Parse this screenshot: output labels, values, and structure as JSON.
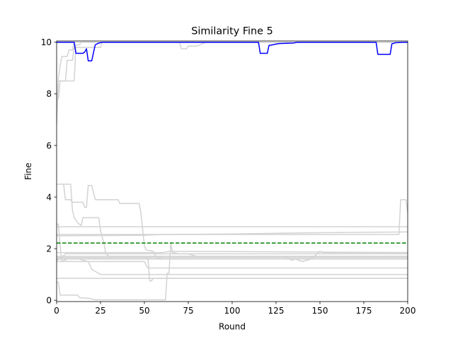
{
  "chart_data": {
    "type": "line",
    "title": "Similarity Fine 5",
    "xlabel": "Round",
    "ylabel": "Fine",
    "xlim": [
      0,
      200
    ],
    "ylim": [
      -0.05,
      10.05
    ],
    "xticks": [
      0,
      25,
      50,
      75,
      100,
      125,
      150,
      175,
      200
    ],
    "yticks": [
      0,
      2,
      4,
      6,
      8,
      10
    ],
    "grid": false,
    "legend": "none",
    "colors": {
      "highlight": "#0000ff",
      "background_series": "#d3d3d3",
      "reference": "#008000"
    },
    "reference_line": {
      "y": 2.22,
      "style": "dashed"
    },
    "highlight_series": {
      "points": [
        [
          0,
          10
        ],
        [
          10,
          10
        ],
        [
          11,
          9.57
        ],
        [
          15,
          9.57
        ],
        [
          16,
          9.62
        ],
        [
          17,
          9.75
        ],
        [
          18,
          9.28
        ],
        [
          20,
          9.28
        ],
        [
          21,
          9.6
        ],
        [
          22,
          9.9
        ],
        [
          24,
          9.97
        ],
        [
          26,
          10
        ],
        [
          115,
          10
        ],
        [
          116,
          9.57
        ],
        [
          120,
          9.57
        ],
        [
          121,
          9.88
        ],
        [
          123,
          9.9
        ],
        [
          125,
          9.93
        ],
        [
          127,
          9.95
        ],
        [
          135,
          9.97
        ],
        [
          137,
          10
        ],
        [
          182,
          10
        ],
        [
          183,
          9.53
        ],
        [
          190,
          9.53
        ],
        [
          191,
          9.94
        ],
        [
          193,
          9.98
        ],
        [
          195,
          9.99
        ],
        [
          197,
          10
        ],
        [
          200,
          10
        ]
      ]
    },
    "background_series": [
      {
        "points": [
          [
            0,
            7.4
          ],
          [
            1,
            8.6
          ],
          [
            2,
            9.1
          ],
          [
            3,
            9.45
          ],
          [
            6,
            9.45
          ],
          [
            7,
            9.7
          ],
          [
            9,
            9.7
          ],
          [
            10,
            10
          ],
          [
            200,
            10
          ]
        ]
      },
      {
        "points": [
          [
            0,
            7.8
          ],
          [
            1,
            7.8
          ],
          [
            2,
            8.5
          ],
          [
            10,
            8.5
          ],
          [
            11,
            9.9
          ],
          [
            13,
            9.9
          ],
          [
            14,
            10
          ],
          [
            200,
            10
          ]
        ]
      },
      {
        "points": [
          [
            0,
            6.8
          ],
          [
            1,
            8.5
          ],
          [
            5,
            8.5
          ],
          [
            6,
            9.3
          ],
          [
            9,
            9.3
          ],
          [
            10,
            9.8
          ],
          [
            25,
            9.8
          ],
          [
            26,
            10
          ],
          [
            70,
            10
          ],
          [
            71,
            9.75
          ],
          [
            74,
            9.75
          ],
          [
            75,
            9.85
          ],
          [
            80,
            9.85
          ],
          [
            84,
            9.97
          ],
          [
            85,
            10
          ],
          [
            200,
            10
          ]
        ]
      },
      {
        "points": [
          [
            0,
            4.5
          ],
          [
            8,
            4.5
          ],
          [
            9,
            3.5
          ],
          [
            10,
            3.2
          ],
          [
            12,
            3.0
          ],
          [
            14,
            2.9
          ],
          [
            15,
            3.2
          ],
          [
            24,
            3.2
          ],
          [
            25,
            2.7
          ],
          [
            27,
            2.2
          ],
          [
            28,
            1.8
          ],
          [
            30,
            1.7
          ],
          [
            200,
            1.7
          ]
        ]
      },
      {
        "points": [
          [
            0,
            4.5
          ],
          [
            4,
            4.5
          ],
          [
            5,
            3.9
          ],
          [
            8,
            3.9
          ],
          [
            9,
            3.8
          ],
          [
            15,
            3.8
          ],
          [
            16,
            3.6
          ],
          [
            17,
            3.6
          ],
          [
            18,
            4.45
          ],
          [
            20,
            4.45
          ],
          [
            22,
            3.9
          ],
          [
            35,
            3.9
          ],
          [
            36,
            3.75
          ],
          [
            47,
            3.75
          ],
          [
            48,
            3.4
          ],
          [
            50,
            2.1
          ],
          [
            51,
            1.95
          ],
          [
            55,
            1.9
          ],
          [
            57,
            1.65
          ],
          [
            60,
            1.6
          ],
          [
            200,
            1.6
          ]
        ]
      },
      {
        "points": [
          [
            0,
            2.95
          ],
          [
            1,
            2.95
          ],
          [
            2,
            2.1
          ],
          [
            3,
            1.5
          ],
          [
            6,
            1.6
          ],
          [
            200,
            1.6
          ]
        ]
      },
      {
        "points": [
          [
            0,
            2.85
          ],
          [
            200,
            2.85
          ]
        ]
      },
      {
        "points": [
          [
            0,
            2.5
          ],
          [
            50,
            2.52
          ],
          [
            60,
            2.55
          ],
          [
            100,
            2.57
          ],
          [
            130,
            2.6
          ],
          [
            150,
            2.62
          ],
          [
            200,
            2.65
          ]
        ]
      },
      {
        "points": [
          [
            0,
            2.55
          ],
          [
            195,
            2.55
          ],
          [
            196,
            3.9
          ],
          [
            199,
            3.9
          ],
          [
            200,
            3.4
          ]
        ]
      },
      {
        "points": [
          [
            0,
            1.7
          ],
          [
            200,
            1.7
          ]
        ]
      },
      {
        "points": [
          [
            0,
            1.55
          ],
          [
            2,
            1.6
          ],
          [
            5,
            1.8
          ],
          [
            200,
            1.8
          ]
        ]
      },
      {
        "points": [
          [
            0,
            1.65
          ],
          [
            200,
            1.65
          ]
        ]
      },
      {
        "points": [
          [
            0,
            1.6
          ],
          [
            13,
            1.6
          ],
          [
            15,
            1.55
          ],
          [
            18,
            1.5
          ],
          [
            20,
            1.2
          ],
          [
            25,
            1.0
          ],
          [
            30,
            1.0
          ],
          [
            200,
            1.0
          ]
        ]
      },
      {
        "points": [
          [
            0,
            1.85
          ],
          [
            60,
            1.85
          ],
          [
            65,
            1.9
          ],
          [
            200,
            1.85
          ]
        ]
      },
      {
        "points": [
          [
            0,
            0.7
          ],
          [
            1,
            0.7
          ],
          [
            2,
            0.2
          ],
          [
            12,
            0.2
          ],
          [
            13,
            0.1
          ],
          [
            18,
            0.08
          ],
          [
            22,
            0.02
          ],
          [
            62,
            0.02
          ],
          [
            63,
            1.05
          ],
          [
            64,
            1.05
          ],
          [
            65,
            2.2
          ],
          [
            66,
            1.85
          ],
          [
            70,
            1.8
          ],
          [
            75,
            1.8
          ],
          [
            80,
            1.7
          ],
          [
            110,
            1.7
          ],
          [
            130,
            1.7
          ],
          [
            134,
            1.55
          ],
          [
            136,
            1.6
          ],
          [
            140,
            1.5
          ],
          [
            145,
            1.6
          ],
          [
            150,
            1.9
          ],
          [
            152,
            1.85
          ],
          [
            200,
            1.85
          ]
        ]
      },
      {
        "points": [
          [
            0,
            1.5
          ],
          [
            50,
            1.5
          ],
          [
            51,
            1.35
          ],
          [
            52,
            1.25
          ],
          [
            55,
            1.25
          ],
          [
            200,
            1.25
          ]
        ]
      },
      {
        "points": [
          [
            0,
            0.85
          ],
          [
            200,
            0.85
          ]
        ]
      },
      {
        "points": [
          [
            0,
            1.65
          ],
          [
            52,
            1.65
          ],
          [
            53,
            0.75
          ],
          [
            54,
            0.75
          ],
          [
            55,
            0.85
          ],
          [
            200,
            0.85
          ]
        ]
      }
    ]
  }
}
